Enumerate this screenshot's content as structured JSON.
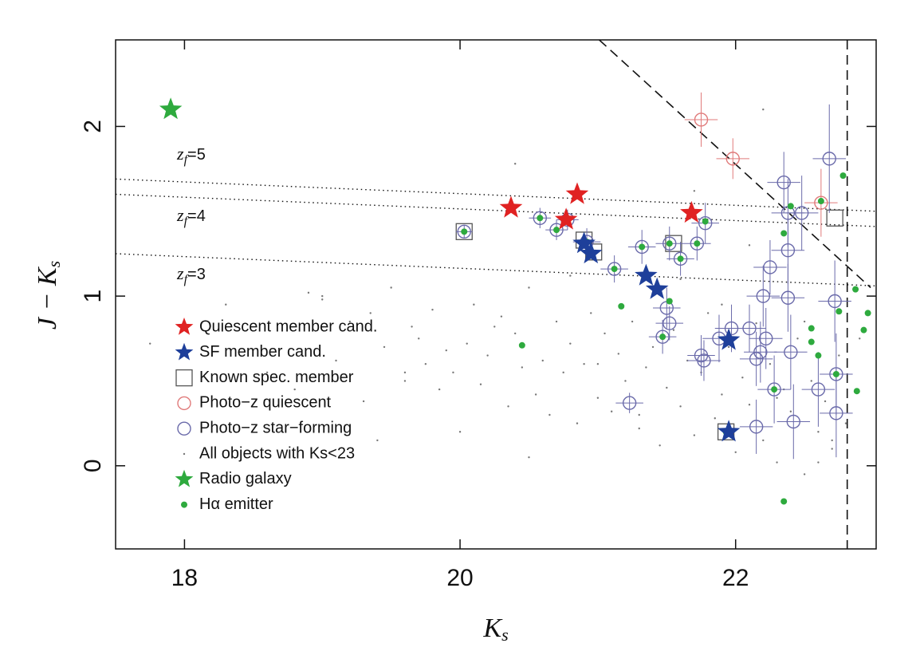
{
  "chart_data": {
    "type": "scatter",
    "x_label": {
      "main": "K",
      "sub": "s"
    },
    "y_label": {
      "main": "J − K",
      "sub": "s"
    },
    "xlim": [
      17.5,
      23.02
    ],
    "ylim": [
      -0.49,
      2.51
    ],
    "xticks": [
      18,
      20,
      22
    ],
    "yticks": [
      0,
      1,
      2
    ],
    "lines": [
      {
        "x": [
          17.5,
          23.02
        ],
        "y": [
          1.69,
          1.5
        ],
        "style": "dotted"
      },
      {
        "x": [
          17.5,
          23.02
        ],
        "y": [
          1.6,
          1.41
        ],
        "style": "dotted"
      },
      {
        "x": [
          17.5,
          23.02
        ],
        "y": [
          1.25,
          1.06
        ],
        "style": "dotted"
      },
      {
        "x": [
          21.01,
          22.98
        ],
        "y": [
          2.51,
          1.05
        ],
        "style": "dashed"
      },
      {
        "x": [
          22.81,
          22.81
        ],
        "y": [
          2.51,
          -0.49
        ],
        "style": "dashed"
      }
    ],
    "annotations": [
      {
        "var": "z",
        "sub": "f",
        "text": "=5"
      },
      {
        "var": "z",
        "sub": "f",
        "text": "=4"
      },
      {
        "var": "z",
        "sub": "f",
        "text": "=3"
      }
    ],
    "series": [
      {
        "name": "All objects with Ks<23",
        "marker": "point",
        "color": "#777777",
        "x": [
          17.75,
          18.3,
          18.6,
          18.8,
          18.9,
          19.0,
          19.1,
          19.2,
          19.3,
          19.35,
          19.45,
          19.5,
          19.6,
          19.65,
          19.7,
          19.75,
          19.8,
          19.85,
          19.9,
          19.95,
          20.05,
          20.1,
          20.15,
          20.2,
          20.3,
          20.35,
          20.4,
          20.45,
          20.5,
          20.55,
          20.6,
          20.65,
          20.7,
          20.75,
          20.8,
          20.85,
          20.9,
          20.95,
          21.0,
          21.05,
          21.1,
          21.15,
          21.2,
          21.25,
          21.3,
          21.35,
          21.4,
          21.45,
          21.5,
          21.55,
          21.6,
          21.65,
          21.7,
          21.75,
          21.8,
          21.85,
          21.9,
          21.95,
          22.0,
          22.05,
          22.1,
          22.15,
          22.2,
          22.25,
          22.3,
          22.35,
          22.4,
          22.45,
          22.5,
          22.55,
          22.6,
          22.65,
          22.7,
          22.75,
          22.8,
          19.0,
          19.4,
          19.6,
          20.0,
          20.25,
          20.5,
          20.8,
          21.0,
          21.3,
          21.6,
          21.9,
          22.1,
          22.3,
          22.5,
          22.7,
          20.4,
          21.7,
          22.2,
          22.6,
          22.9
        ],
        "y": [
          0.72,
          0.95,
          0.55,
          0.45,
          1.02,
          0.98,
          0.62,
          0.85,
          0.38,
          0.9,
          0.7,
          1.05,
          0.5,
          0.82,
          0.75,
          0.6,
          0.92,
          0.45,
          0.68,
          0.55,
          0.72,
          0.95,
          0.48,
          0.65,
          0.88,
          0.35,
          0.78,
          0.58,
          1.05,
          0.42,
          0.62,
          0.3,
          0.85,
          0.55,
          0.72,
          0.25,
          0.6,
          0.9,
          0.4,
          0.78,
          0.32,
          0.66,
          0.5,
          0.85,
          0.22,
          0.58,
          0.7,
          0.12,
          0.46,
          0.8,
          0.35,
          0.62,
          0.18,
          0.55,
          0.9,
          0.28,
          0.42,
          0.7,
          0.08,
          0.52,
          0.36,
          0.84,
          0.15,
          0.6,
          0.02,
          0.45,
          0.32,
          0.75,
          -0.05,
          0.5,
          0.2,
          0.38,
          0.1,
          0.65,
          0.25,
          1.0,
          0.15,
          0.55,
          0.2,
          0.82,
          0.05,
          1.12,
          0.6,
          0.3,
          1.1,
          0.95,
          1.3,
          0.4,
          0.85,
          0.15,
          1.78,
          1.62,
          2.1,
          0.02,
          0.75
        ]
      },
      {
        "name": "Known spec. member",
        "marker": "square",
        "color": "#555555",
        "x": [
          20.03,
          20.9,
          20.97,
          21.55,
          21.93,
          22.72
        ],
        "y": [
          1.38,
          1.33,
          1.26,
          1.31,
          0.2,
          1.46
        ]
      },
      {
        "name": "Photo−z quiescent",
        "marker": "open-circle",
        "color": "#e07a7a",
        "x": [
          21.75,
          21.98,
          22.62
        ],
        "y": [
          2.04,
          1.81,
          1.55
        ],
        "xerr": [
          0.12,
          0.12,
          0.12
        ],
        "yerr": [
          0.16,
          0.12,
          0.2
        ]
      },
      {
        "name": "Photo−z star−forming",
        "marker": "open-circle",
        "color": "#6a6aaa",
        "x": [
          20.03,
          20.58,
          20.7,
          20.78,
          20.92,
          21.12,
          21.23,
          21.32,
          21.52,
          21.6,
          21.72,
          21.78,
          21.5,
          21.52,
          21.47,
          21.75,
          21.77,
          21.88,
          21.97,
          22.1,
          22.15,
          22.18,
          22.2,
          22.25,
          22.22,
          22.15,
          22.28,
          22.35,
          22.38,
          22.38,
          22.38,
          22.4,
          22.42,
          22.48,
          22.6,
          22.68,
          22.72,
          22.73,
          22.73
        ],
        "y": [
          1.38,
          1.46,
          1.39,
          1.45,
          1.32,
          1.16,
          0.37,
          1.29,
          1.31,
          1.22,
          1.31,
          1.43,
          0.93,
          0.84,
          0.76,
          0.65,
          0.62,
          0.75,
          0.81,
          0.81,
          0.63,
          0.67,
          1.0,
          1.17,
          0.75,
          0.23,
          0.45,
          1.67,
          1.49,
          1.27,
          0.99,
          0.67,
          0.26,
          1.49,
          0.45,
          1.81,
          0.97,
          0.54,
          0.31
        ],
        "xerr": [
          0.06,
          0.08,
          0.08,
          0.08,
          0.1,
          0.1,
          0.1,
          0.1,
          0.1,
          0.1,
          0.1,
          0.1,
          0.1,
          0.1,
          0.1,
          0.1,
          0.12,
          0.12,
          0.12,
          0.12,
          0.12,
          0.12,
          0.12,
          0.12,
          0.12,
          0.12,
          0.12,
          0.12,
          0.12,
          0.12,
          0.12,
          0.12,
          0.12,
          0.12,
          0.12,
          0.12,
          0.12,
          0.12,
          0.12
        ],
        "yerr": [
          0.04,
          0.06,
          0.06,
          0.06,
          0.08,
          0.08,
          0.06,
          0.1,
          0.1,
          0.1,
          0.1,
          0.12,
          0.12,
          0.1,
          0.1,
          0.12,
          0.12,
          0.14,
          0.14,
          0.14,
          0.16,
          0.18,
          0.18,
          0.16,
          0.18,
          0.16,
          0.2,
          0.18,
          0.2,
          0.2,
          0.2,
          0.22,
          0.22,
          0.22,
          0.22,
          0.32,
          0.24,
          0.24,
          0.26
        ]
      },
      {
        "name": "Hα emitter",
        "marker": "dot",
        "color": "#2eaa3e",
        "x": [
          20.03,
          20.58,
          20.7,
          20.78,
          20.92,
          20.95,
          21.12,
          21.17,
          21.35,
          21.42,
          21.32,
          21.52,
          21.6,
          21.72,
          21.52,
          21.47,
          20.45,
          21.93,
          22.28,
          22.35,
          22.4,
          22.62,
          22.78,
          22.73,
          22.75,
          22.87,
          22.93,
          22.96,
          22.88,
          22.55,
          22.6,
          22.55,
          22.35,
          21.78
        ],
        "y": [
          1.38,
          1.46,
          1.39,
          1.45,
          1.32,
          1.24,
          1.16,
          0.94,
          1.12,
          1.04,
          1.29,
          1.31,
          1.22,
          1.31,
          0.97,
          0.76,
          0.71,
          0.2,
          0.45,
          1.37,
          1.53,
          1.56,
          1.71,
          0.54,
          0.91,
          1.04,
          0.8,
          0.9,
          0.44,
          0.73,
          0.65,
          0.81,
          -0.21,
          1.44
        ]
      },
      {
        "name": "Quiescent member cand.",
        "marker": "star",
        "color": "#e02222",
        "x": [
          20.37,
          20.77,
          20.85,
          21.68
        ],
        "y": [
          1.52,
          1.45,
          1.6,
          1.49
        ]
      },
      {
        "name": "SF member cand.",
        "marker": "star",
        "color": "#1e3f9a",
        "x": [
          20.9,
          20.95,
          21.35,
          21.43,
          21.95,
          21.95
        ],
        "y": [
          1.31,
          1.25,
          1.12,
          1.04,
          0.74,
          0.2
        ]
      },
      {
        "name": "Radio galaxy",
        "marker": "star",
        "color": "#2eaa3e",
        "x": [
          17.9
        ],
        "y": [
          2.1
        ]
      }
    ],
    "legend_order": [
      5,
      6,
      1,
      2,
      3,
      0,
      7,
      4
    ]
  }
}
